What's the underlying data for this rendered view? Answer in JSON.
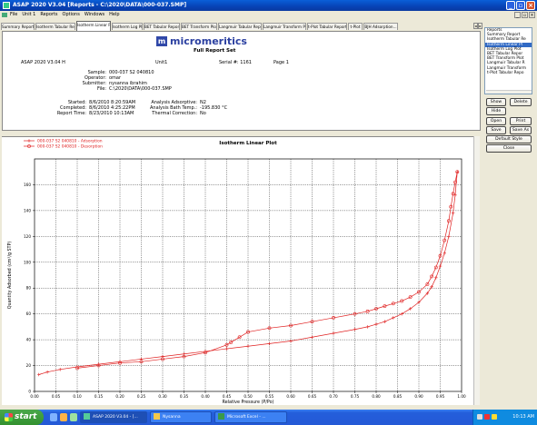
{
  "window": {
    "title": "ASAP 2020 V3.04   [Reports - C:\\2020\\DATA\\000-037.SMP]"
  },
  "menu": {
    "items": [
      "File",
      "Unit 1",
      "Reports",
      "Options",
      "Windows",
      "Help"
    ]
  },
  "tabs": [
    {
      "label": "Summary Report"
    },
    {
      "label": "Isotherm Tabular Report"
    },
    {
      "label": "Isotherm Linear Plot"
    },
    {
      "label": "Isotherm Log Plot"
    },
    {
      "label": "BET Tabular Report"
    },
    {
      "label": "BET Transform Plot"
    },
    {
      "label": "Langmuir Tabular Report"
    },
    {
      "label": "Langmuir Transform Plot"
    },
    {
      "label": "t-Plot Tabular Report"
    },
    {
      "label": "t-Plot"
    },
    {
      "label": "BJH Adsorption..."
    }
  ],
  "report": {
    "brand": "micromeritics",
    "title": "Full Report Set",
    "instrument": "ASAP 2020 V3.04 H",
    "unit": "Unit1",
    "serial": "Serial #: 1161",
    "page": "Page 1",
    "sample_label": "Sample:",
    "sample": "000-037 S2 040810",
    "operator_label": "Operator:",
    "operator": "omar",
    "submitter_label": "Submitter:",
    "submitter": "nysanna ibrahim",
    "file_label": "File:",
    "file": "C:\\2020\\DATA\\000-037.SMP",
    "started_label": "Started:",
    "started": "8/6/2010 8:20:59AM",
    "completed_label": "Completed:",
    "completed": "8/6/2010 4:25:22PM",
    "report_time_label": "Report Time:",
    "report_time": "8/23/2010 10:13AM",
    "adsorptive_label": "Analysis Adsorptive:",
    "adsorptive": "N2",
    "bath_label": "Analysis Bath Temp.:",
    "bath": "-195.830 °C",
    "correction_label": "Thermal Correction:",
    "correction": "No"
  },
  "side_panel": {
    "list_items": [
      "Reports",
      "Summary Report",
      "Isotherm Tabular Re",
      "Isotherm Linear Pl",
      "Isotherm Log Plot",
      "BET Tabular Repor",
      "BET Transform Plot",
      "Langmuir Tabular R",
      "Langmuir Transform",
      "t-Plot Tabular Repo"
    ],
    "selected_index": 3,
    "buttons": {
      "show": "Show",
      "delete": "Delete",
      "hide": "Hide",
      "open": "Open",
      "print": "Print",
      "save": "Save",
      "save_as": "Save As",
      "default_style": "Default Style",
      "close": "Close"
    }
  },
  "chart_data": {
    "type": "line",
    "title": "Isotherm Linear Plot",
    "xlabel": "Relative Pressure (P/Po)",
    "ylabel": "Quantity Adsorbed (cm³/g STP)",
    "xlim": [
      0.0,
      1.0
    ],
    "ylim": [
      0,
      180
    ],
    "xticks": [
      "0.00",
      "0.05",
      "0.10",
      "0.15",
      "0.20",
      "0.25",
      "0.30",
      "0.35",
      "0.40",
      "0.45",
      "0.50",
      "0.55",
      "0.60",
      "0.65",
      "0.70",
      "0.75",
      "0.80",
      "0.85",
      "0.90",
      "0.95",
      "1.00"
    ],
    "yticks": [
      "0",
      "20",
      "40",
      "60",
      "80",
      "100",
      "120",
      "140",
      "160"
    ],
    "grid": true,
    "legend_position": "top-left",
    "series": [
      {
        "name": "000-037 S2 040810 - Adsorption",
        "marker": "+",
        "color": "#e02020",
        "x": [
          0.01,
          0.03,
          0.06,
          0.1,
          0.15,
          0.2,
          0.25,
          0.3,
          0.35,
          0.4,
          0.45,
          0.5,
          0.55,
          0.6,
          0.65,
          0.7,
          0.75,
          0.78,
          0.8,
          0.82,
          0.84,
          0.86,
          0.88,
          0.9,
          0.92,
          0.93,
          0.94,
          0.95,
          0.96,
          0.97,
          0.98,
          0.985,
          0.99
        ],
        "y": [
          13,
          15,
          17,
          19,
          21,
          23,
          25,
          27,
          29,
          31,
          33,
          35,
          37,
          39,
          42,
          45,
          48,
          50,
          52,
          54,
          57,
          60,
          64,
          69,
          76,
          81,
          88,
          97,
          107,
          120,
          138,
          152,
          170
        ]
      },
      {
        "name": "000-037 S2 040810 - Desorption",
        "marker": "o",
        "color": "#e02020",
        "x": [
          0.99,
          0.985,
          0.98,
          0.975,
          0.97,
          0.96,
          0.95,
          0.94,
          0.93,
          0.92,
          0.9,
          0.88,
          0.86,
          0.84,
          0.82,
          0.8,
          0.78,
          0.75,
          0.7,
          0.65,
          0.6,
          0.55,
          0.5,
          0.48,
          0.46,
          0.45,
          0.4,
          0.35,
          0.3,
          0.25,
          0.2,
          0.15,
          0.1
        ],
        "y": [
          170,
          162,
          153,
          143,
          132,
          117,
          105,
          96,
          89,
          83,
          77,
          73,
          70,
          68,
          66,
          64,
          62,
          60,
          57,
          54,
          51,
          49,
          46,
          42,
          38,
          36,
          30,
          27,
          25,
          23,
          22,
          20,
          18
        ]
      }
    ]
  },
  "taskbar": {
    "start": "start",
    "tasks": [
      "ASAP 2020 V3.04 - [...",
      "Nysanna",
      "Microsoft Excel - ..."
    ],
    "clock": "10:13 AM"
  }
}
